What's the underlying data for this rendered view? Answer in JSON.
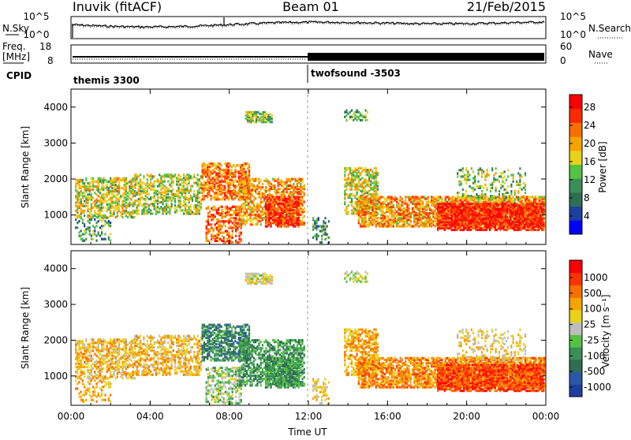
{
  "header": {
    "station": "Inuvik (fitACF)",
    "beam": "Beam 01",
    "date": "21/Feb/2015"
  },
  "panel_labels": {
    "nsky": "N.Sky",
    "freq_top": "Freq.",
    "freq_unit": "[MHz]",
    "cpid": "CPID",
    "nsearch": "N.Search",
    "nave": "Nave"
  },
  "cpid": {
    "first_mode": "themis 3300",
    "second_mode": "twofsound -3503",
    "switch_time_hours": 12
  },
  "noise": {
    "left_ticks": [
      "10^5",
      "10^0"
    ],
    "right_ticks": [
      "10^5",
      "10^0"
    ]
  },
  "freq": {
    "left_ticks": [
      "18",
      "8"
    ],
    "right_ticks": [
      "60",
      "0"
    ]
  },
  "colors": {
    "power": [
      "#0000ff",
      "#1f3fa0",
      "#2e6e52",
      "#3a8f58",
      "#55c243",
      "#e8d21a",
      "#f7a300",
      "#f76f00",
      "#ff2a00",
      "#ff0000"
    ],
    "velocity": [
      "#1f3fa0",
      "#2b58a6",
      "#2e6e52",
      "#3a8f58",
      "#55c243",
      "#bdbdbd",
      "#e8d21a",
      "#f7a300",
      "#f77000",
      "#ff3300",
      "#ff0000"
    ]
  },
  "chart_data": [
    {
      "type": "heatmap",
      "name": "Power",
      "xlabel": "",
      "ylabel": "Slant Range [km]",
      "xlim": [
        0,
        24
      ],
      "ylim": [
        180,
        4500
      ],
      "yticks": [
        "1000",
        "2000",
        "3000",
        "4000"
      ],
      "colorbar_label": "Power [dB]",
      "colorbar_ticks": [
        "4",
        "8",
        "12",
        "16",
        "20",
        "24",
        "28"
      ]
    },
    {
      "type": "heatmap",
      "name": "Velocity",
      "xlabel": "Time UT",
      "ylabel": "Slant Range [km]",
      "xlim": [
        0,
        24
      ],
      "ylim": [
        180,
        4500
      ],
      "xticks": [
        "00:00",
        "04:00",
        "08:00",
        "12:00",
        "16:00",
        "20:00",
        "00:00"
      ],
      "yticks": [
        "1000",
        "2000",
        "3000",
        "4000"
      ],
      "colorbar_label": "Velocity [m s⁻¹]",
      "colorbar_ticks": [
        "1000",
        "500",
        "100",
        "25",
        "-25",
        "-100",
        "-500",
        "-1000"
      ]
    }
  ]
}
